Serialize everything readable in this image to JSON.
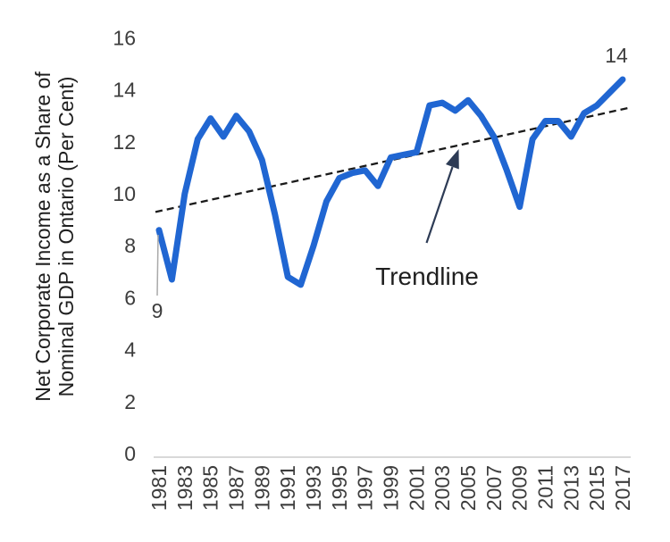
{
  "page": {
    "background": "#ffffff"
  },
  "colors": {
    "line": "#2066d2",
    "trendline": "#1a1a1a",
    "arrow": "#2d3b55",
    "axis_line": "#d9d9d9",
    "tick_text": "#3d3d3d",
    "label_text": "#1f1f1f",
    "leader_line": "#a9a9a9"
  },
  "chart_data": {
    "type": "line",
    "title": "",
    "ylabel_lines": [
      "Net Corporate Income as a Share of",
      "Nominal GDP in Ontario (Per Cent)"
    ],
    "xlabel": "",
    "ylim": [
      0,
      16
    ],
    "yticks": [
      0,
      2,
      4,
      6,
      8,
      10,
      12,
      14,
      16
    ],
    "xtick_labels": [
      "1981",
      "1983",
      "1985",
      "1987",
      "1989",
      "1991",
      "1993",
      "1995",
      "1997",
      "1999",
      "2001",
      "2003",
      "2005",
      "2007",
      "2009",
      "2011",
      "2013",
      "2015",
      "2017"
    ],
    "grid": false,
    "legend": false,
    "x": [
      1981,
      1982,
      1983,
      1984,
      1985,
      1986,
      1987,
      1988,
      1989,
      1990,
      1991,
      1992,
      1993,
      1994,
      1995,
      1996,
      1997,
      1998,
      1999,
      2000,
      2001,
      2002,
      2003,
      2004,
      2005,
      2006,
      2007,
      2008,
      2009,
      2010,
      2011,
      2012,
      2013,
      2014,
      2015,
      2016,
      2017
    ],
    "series": [
      {
        "name": "Net Corporate Income as a Share of Nominal GDP in Ontario (Per Cent)",
        "values": [
          8.6,
          6.7,
          10.0,
          12.1,
          12.9,
          12.2,
          13.0,
          12.4,
          11.3,
          9.2,
          6.8,
          6.5,
          8.0,
          9.7,
          10.6,
          10.8,
          10.9,
          10.3,
          11.4,
          11.5,
          11.6,
          13.4,
          13.5,
          13.2,
          13.6,
          13.0,
          12.2,
          10.9,
          9.5,
          12.1,
          12.8,
          12.8,
          12.2,
          13.1,
          13.4,
          13.9,
          14.4
        ]
      }
    ],
    "trendline": {
      "label": "Trendline",
      "style": "dashed",
      "start_value": 9.3,
      "end_value": 13.3
    },
    "callouts": {
      "first_point_label": "9",
      "last_point_label": "14"
    }
  }
}
